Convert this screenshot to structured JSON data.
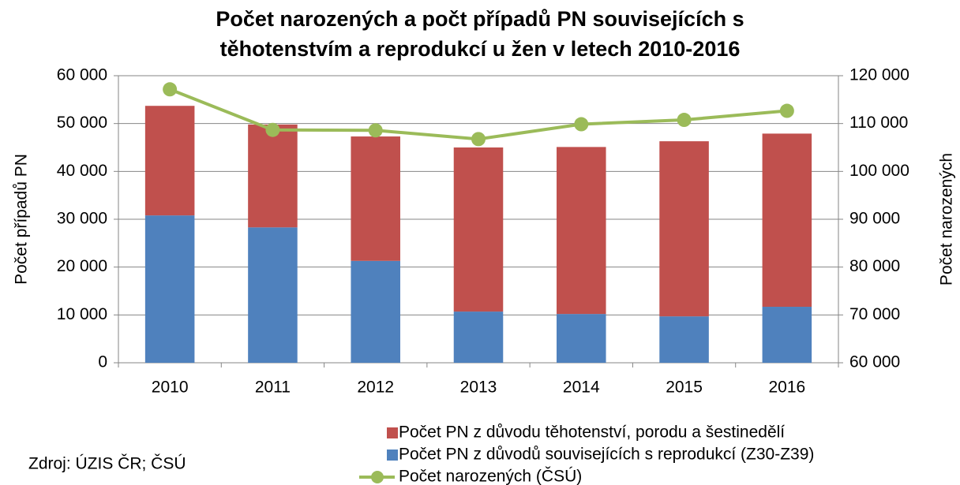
{
  "chart_data": {
    "type": "bar",
    "title": [
      "Počet narozených a počt případů PN souvisejících s",
      "těhotenstvím a reprodukcí u žen v letech 2010-2016"
    ],
    "ylabel": "Počet případů PN",
    "y2label": "Počet narozených",
    "source": "Zdroj: ÚZIS ČR; ČSÚ",
    "categories": [
      "2010",
      "2011",
      "2012",
      "2013",
      "2014",
      "2015",
      "2016"
    ],
    "series": [
      {
        "name": "Počet PN z důvodu těhotenství, porodu a šestinedělí",
        "color": "#c0504d",
        "type": "bar",
        "values": [
          22900,
          21500,
          26000,
          34300,
          34900,
          36600,
          36200
        ]
      },
      {
        "name": "Počet PN z důvodů souvisejících s reprodukcí (Z30-Z39)",
        "color": "#4f81bd",
        "type": "bar",
        "values": [
          30800,
          28300,
          21300,
          10700,
          10200,
          9700,
          11700
        ]
      },
      {
        "name": "Počet narozených (ČSÚ)",
        "color": "#9bbb59",
        "type": "line",
        "axis": "y2",
        "values": [
          117153,
          108673,
          108576,
          106751,
          109860,
          110764,
          112663
        ]
      }
    ],
    "stacked": true,
    "ylim": [
      0,
      60000
    ],
    "yticks": [
      0,
      {
        "value": 10000,
        "label": "10 000"
      },
      {
        "value": 20000,
        "label": "20 000"
      },
      {
        "value": 30000,
        "label": "30 000"
      },
      {
        "value": 40000,
        "label": "40 000"
      },
      {
        "value": 50000,
        "label": "50 000"
      },
      {
        "value": 60000,
        "label": "60 000"
      }
    ],
    "y2lim": [
      60000,
      120000
    ],
    "y2ticks": [
      {
        "value": 60000,
        "label": "60 000"
      },
      {
        "value": 70000,
        "label": "70 000"
      },
      {
        "value": 80000,
        "label": "80 000"
      },
      {
        "value": 90000,
        "label": "90 000"
      },
      {
        "value": 100000,
        "label": "100 000"
      },
      {
        "value": 110000,
        "label": "110 000"
      },
      {
        "value": 120000,
        "label": "120 000"
      }
    ],
    "grid": true,
    "legend": "bottom"
  }
}
